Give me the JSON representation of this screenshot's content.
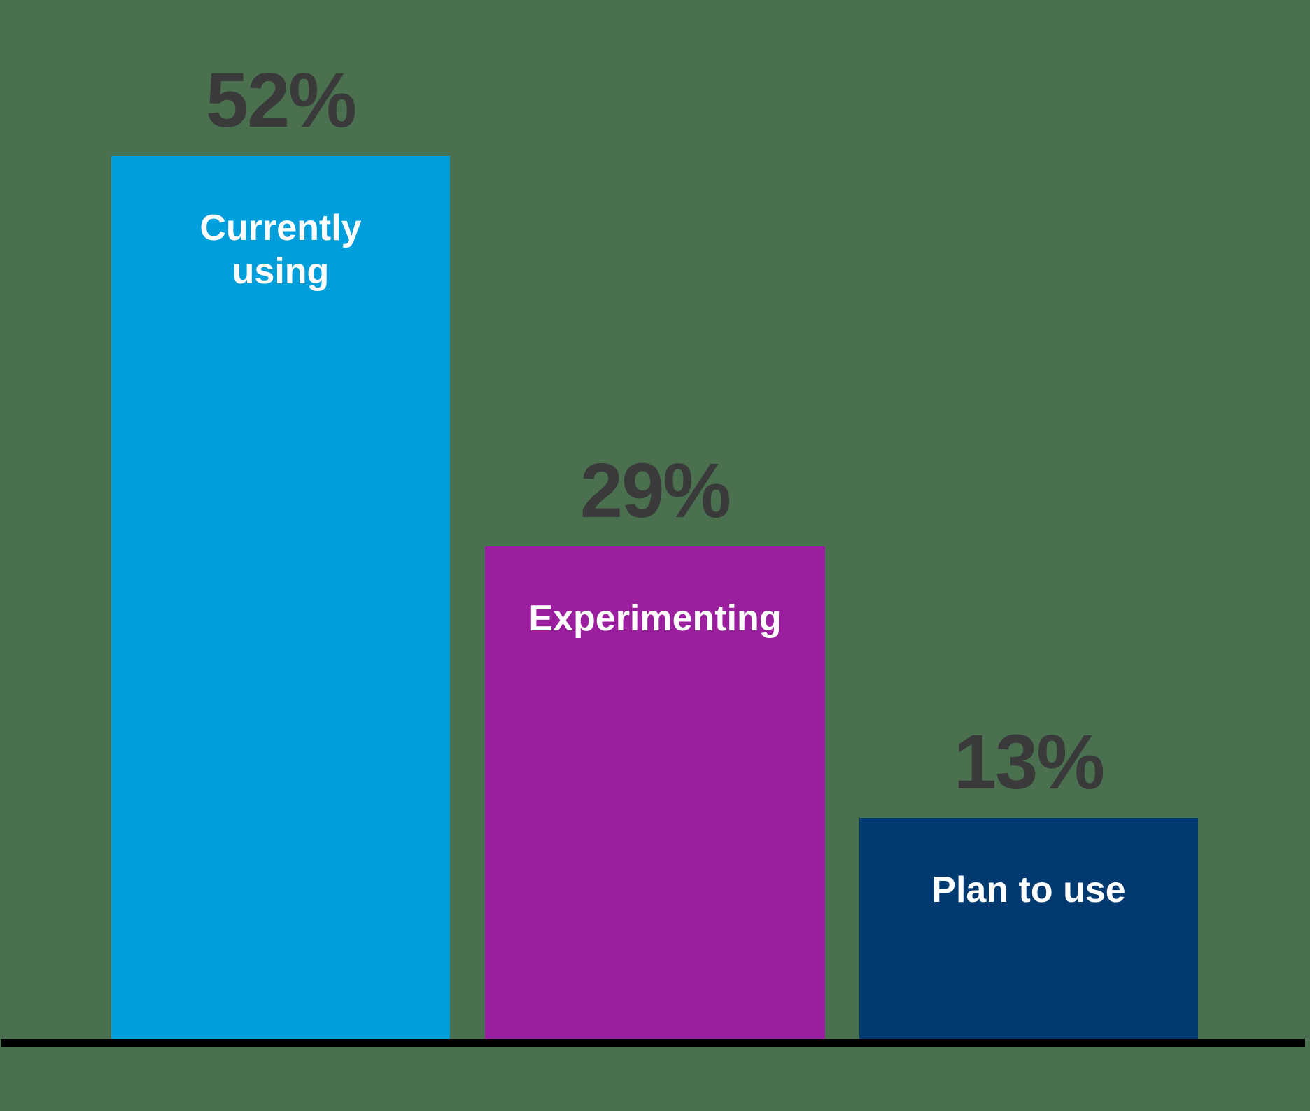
{
  "chart_data": {
    "type": "bar",
    "title": "",
    "xlabel": "",
    "ylabel": "",
    "categories": [
      "Currently using",
      "Experimenting",
      "Plan to use"
    ],
    "values": [
      52,
      29,
      13
    ],
    "value_unit": "%",
    "ylim": [
      0,
      57
    ],
    "grid": false,
    "legend": false,
    "axis": "baseline-only",
    "bars": [
      {
        "category": "Currently using",
        "category_display": "Currently\nusing",
        "value": 52,
        "value_label": "52%",
        "color": "#009EDB"
      },
      {
        "category": "Experimenting",
        "category_display": "Experimenting",
        "value": 29,
        "value_label": "29%",
        "color": "#9B1E9E"
      },
      {
        "category": "Plan to use",
        "category_display": "Plan to use",
        "value": 13,
        "value_label": "13%",
        "color": "#003A70"
      }
    ]
  },
  "style": {
    "background_color": "#4A7050",
    "value_label_color": "#3A3A3A",
    "bar_label_color": "#FFFFFF",
    "axis_color": "#000000"
  }
}
